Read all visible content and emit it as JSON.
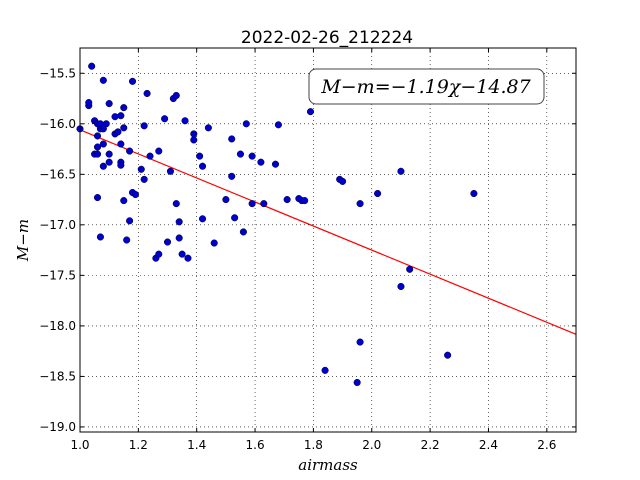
{
  "chart_data": {
    "type": "scatter",
    "title": "2022-02-26_212224",
    "xlabel": "airmass",
    "ylabel": "M−m",
    "annotation": "M−m=−1.19χ−14.87",
    "xlim": [
      1.0,
      2.7
    ],
    "ylim": [
      -19.05,
      -15.25
    ],
    "y_inverted": true,
    "grid": true,
    "xticks": [
      "1.0",
      "1.2",
      "1.4",
      "1.6",
      "1.8",
      "2.0",
      "2.2",
      "2.4",
      "2.6"
    ],
    "yticks": [
      "−15.5",
      "−16.0",
      "−16.5",
      "−17.0",
      "−17.5",
      "−18.0",
      "−18.5",
      "−19.0"
    ],
    "xtick_values": [
      1.0,
      1.2,
      1.4,
      1.6,
      1.8,
      2.0,
      2.2,
      2.4,
      2.6
    ],
    "ytick_values": [
      -15.5,
      -16.0,
      -16.5,
      -17.0,
      -17.5,
      -18.0,
      -18.5,
      -19.0
    ],
    "fit": {
      "slope": -1.19,
      "intercept": -14.87,
      "color": "#ff0000"
    },
    "point_color": "#0000cc",
    "points": [
      [
        1.0,
        -16.05
      ],
      [
        1.03,
        -15.82
      ],
      [
        1.03,
        -15.79
      ],
      [
        1.04,
        -15.43
      ],
      [
        1.05,
        -16.3
      ],
      [
        1.05,
        -15.97
      ],
      [
        1.06,
        -16.0
      ],
      [
        1.06,
        -16.12
      ],
      [
        1.06,
        -16.23
      ],
      [
        1.06,
        -16.73
      ],
      [
        1.06,
        -16.3
      ],
      [
        1.07,
        -16.05
      ],
      [
        1.07,
        -16.0
      ],
      [
        1.07,
        -17.12
      ],
      [
        1.08,
        -15.57
      ],
      [
        1.08,
        -16.05
      ],
      [
        1.08,
        -16.2
      ],
      [
        1.08,
        -16.42
      ],
      [
        1.09,
        -16.0
      ],
      [
        1.1,
        -16.38
      ],
      [
        1.1,
        -16.3
      ],
      [
        1.1,
        -15.8
      ],
      [
        1.12,
        -15.93
      ],
      [
        1.12,
        -16.1
      ],
      [
        1.13,
        -16.08
      ],
      [
        1.14,
        -16.38
      ],
      [
        1.14,
        -16.41
      ],
      [
        1.14,
        -15.92
      ],
      [
        1.14,
        -16.2
      ],
      [
        1.15,
        -15.84
      ],
      [
        1.15,
        -16.04
      ],
      [
        1.15,
        -16.76
      ],
      [
        1.16,
        -17.15
      ],
      [
        1.17,
        -16.96
      ],
      [
        1.17,
        -16.27
      ],
      [
        1.18,
        -15.58
      ],
      [
        1.18,
        -16.68
      ],
      [
        1.19,
        -16.7
      ],
      [
        1.21,
        -16.45
      ],
      [
        1.22,
        -16.55
      ],
      [
        1.22,
        -16.02
      ],
      [
        1.23,
        -15.7
      ],
      [
        1.24,
        -16.32
      ],
      [
        1.26,
        -17.33
      ],
      [
        1.27,
        -17.29
      ],
      [
        1.27,
        -16.27
      ],
      [
        1.29,
        -15.95
      ],
      [
        1.3,
        -17.17
      ],
      [
        1.31,
        -16.47
      ],
      [
        1.32,
        -15.75
      ],
      [
        1.33,
        -15.72
      ],
      [
        1.33,
        -16.79
      ],
      [
        1.34,
        -16.97
      ],
      [
        1.34,
        -17.13
      ],
      [
        1.35,
        -17.29
      ],
      [
        1.36,
        -15.97
      ],
      [
        1.37,
        -17.33
      ],
      [
        1.39,
        -16.16
      ],
      [
        1.39,
        -16.1
      ],
      [
        1.41,
        -16.32
      ],
      [
        1.42,
        -16.42
      ],
      [
        1.42,
        -16.94
      ],
      [
        1.44,
        -16.04
      ],
      [
        1.46,
        -17.18
      ],
      [
        1.5,
        -16.75
      ],
      [
        1.52,
        -16.15
      ],
      [
        1.52,
        -16.52
      ],
      [
        1.53,
        -16.93
      ],
      [
        1.55,
        -16.3
      ],
      [
        1.56,
        -17.07
      ],
      [
        1.57,
        -16.0
      ],
      [
        1.59,
        -16.79
      ],
      [
        1.59,
        -16.32
      ],
      [
        1.62,
        -16.38
      ],
      [
        1.63,
        -16.79
      ],
      [
        1.67,
        -16.4
      ],
      [
        1.68,
        -16.01
      ],
      [
        1.71,
        -16.75
      ],
      [
        1.75,
        -16.74
      ],
      [
        1.76,
        -16.76
      ],
      [
        1.77,
        -16.76
      ],
      [
        1.79,
        -15.88
      ],
      [
        1.84,
        -18.44
      ],
      [
        1.89,
        -16.55
      ],
      [
        1.9,
        -16.57
      ],
      [
        1.95,
        -18.56
      ],
      [
        1.96,
        -16.79
      ],
      [
        1.96,
        -18.16
      ],
      [
        2.02,
        -16.69
      ],
      [
        2.1,
        -17.61
      ],
      [
        2.1,
        -16.47
      ],
      [
        2.13,
        -17.44
      ],
      [
        2.26,
        -18.29
      ],
      [
        2.35,
        -16.69
      ]
    ]
  }
}
